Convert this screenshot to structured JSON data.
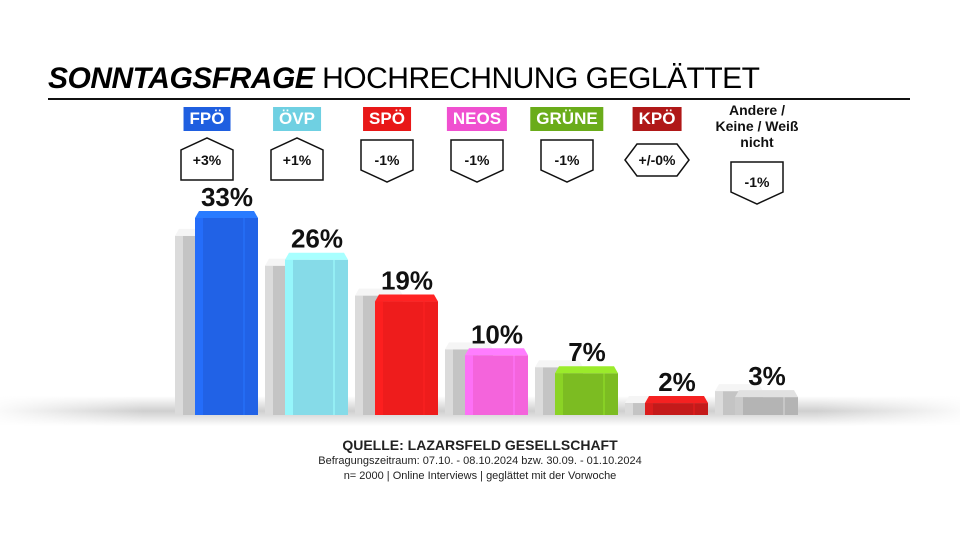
{
  "chart_data": {
    "type": "bar",
    "title": "SONNTAGSFRAGE",
    "subtitle": "HOCHRECHNUNG GEGLÄTTET",
    "categories": [
      "FPÖ",
      "ÖVP",
      "SPÖ",
      "NEOS",
      "GRÜNE",
      "KPÖ",
      "Andere / Keine / Weiß nicht"
    ],
    "label_colors": [
      "#1f5fe0",
      "#6fd0e2",
      "#e81818",
      "#f050d0",
      "#6aac1a",
      "#b01818",
      null
    ],
    "colors": [
      "#2162e6",
      "#86dbe8",
      "#ee1c1c",
      "#f464dc",
      "#7cbc22",
      "#c41a1a",
      "#b4b4b4"
    ],
    "values": [
      33,
      26,
      19,
      10,
      7,
      2,
      3
    ],
    "value_labels": [
      "33%",
      "26%",
      "19%",
      "10%",
      "7%",
      "2%",
      "3%"
    ],
    "changes": [
      "+3%",
      "+1%",
      "-1%",
      "-1%",
      "-1%",
      "+/-0%",
      "-1%"
    ],
    "previous_values": [
      30,
      25,
      20,
      11,
      8,
      2,
      4
    ],
    "previous_color": "#c4c4c4",
    "ylim": [
      0,
      35
    ],
    "source": "QUELLE: LAZARSFELD GESELLSCHAFT",
    "notes": [
      "Befragungszeitraum: 07.10. - 08.10.2024 bzw. 30.09. - 01.10.2024",
      "n= 2000 | Online Interviews | geglättet mit der Vorwoche"
    ]
  }
}
